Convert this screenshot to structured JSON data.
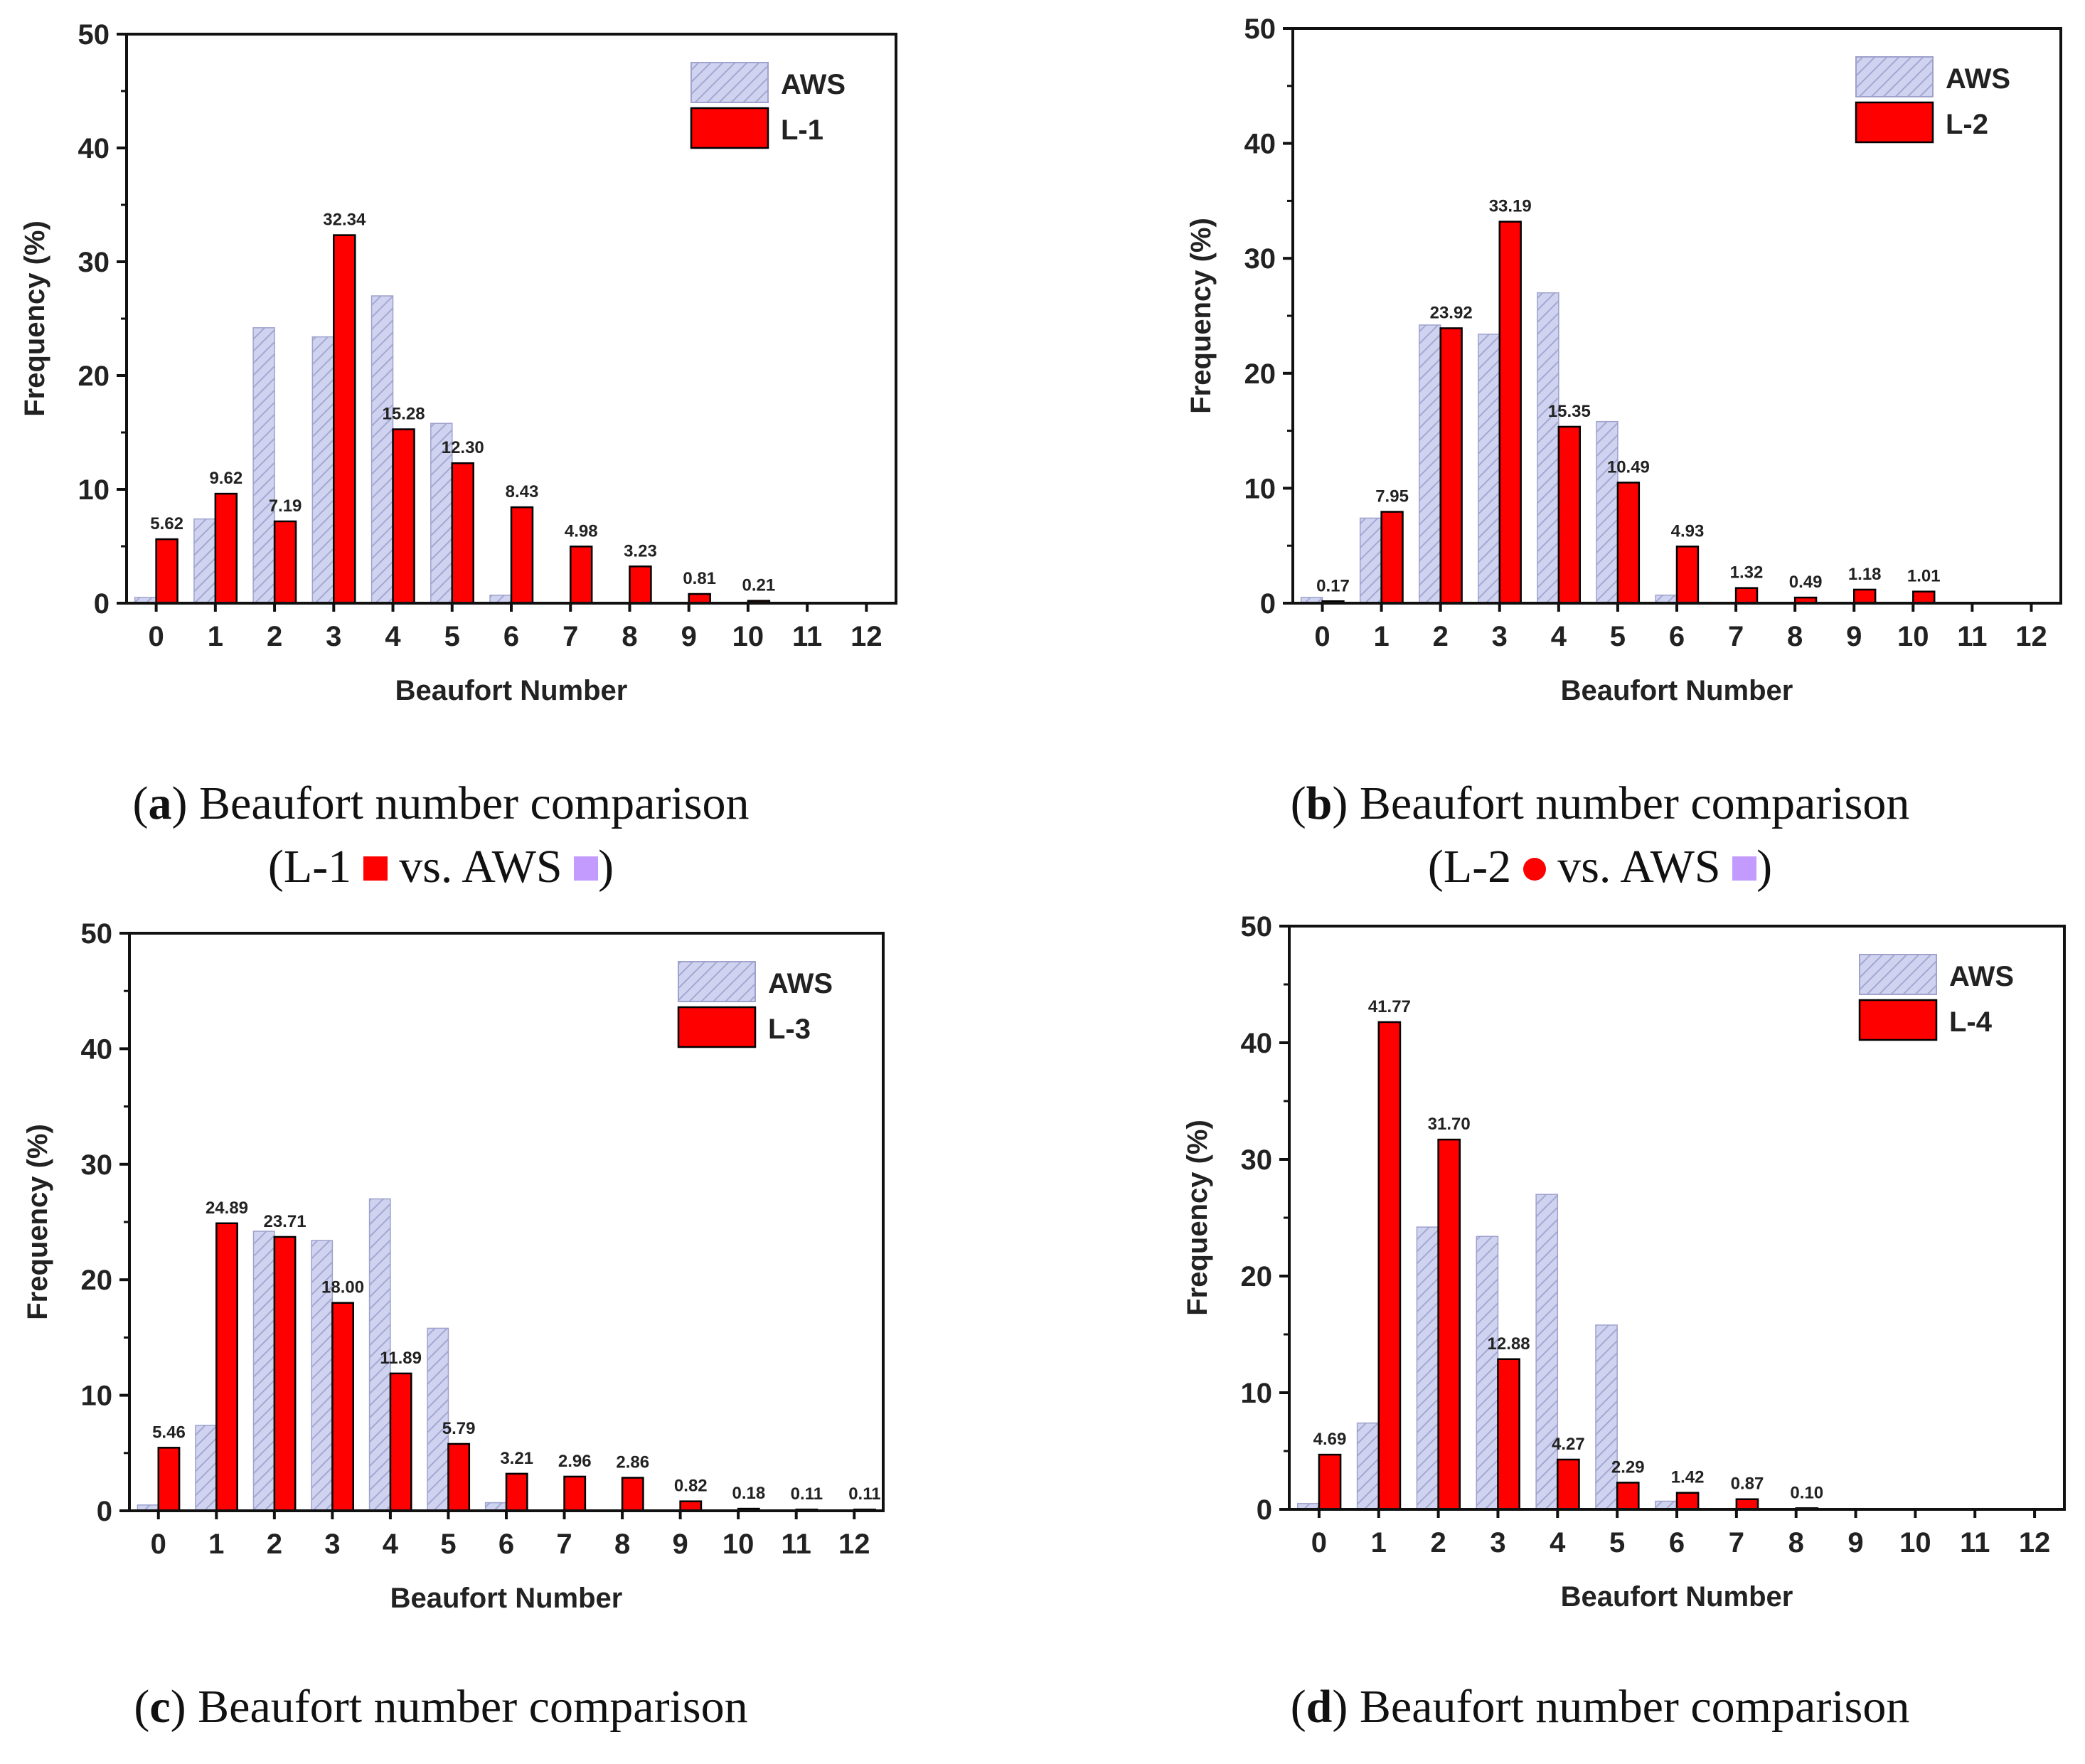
{
  "colors": {
    "aws_fill": "#d0d3f0",
    "aws_hatch": "#a4a8d2",
    "l_fill": "#ff0000",
    "axis": "#111111",
    "caption_marker": "#c39bff"
  },
  "chart_data": [
    {
      "id": "a",
      "type": "bar",
      "categories": [
        "0",
        "1",
        "2",
        "3",
        "4",
        "5",
        "6",
        "7",
        "8",
        "9",
        "10",
        "11",
        "12"
      ],
      "series": [
        {
          "name": "AWS",
          "values": [
            0.5,
            7.4,
            24.2,
            23.4,
            27.0,
            15.8,
            0.7,
            0,
            0,
            0,
            0,
            0,
            0
          ]
        },
        {
          "name": "L-1",
          "values": [
            5.62,
            9.62,
            7.19,
            32.34,
            15.28,
            12.3,
            8.43,
            4.98,
            3.23,
            0.81,
            0.21,
            null,
            null
          ]
        }
      ],
      "data_labels": [
        "5.62",
        "9.62",
        "7.19",
        "32.34",
        "15.28",
        "12.30",
        "8.43",
        "4.98",
        "3.23",
        "0.81",
        "0.21",
        "",
        ""
      ],
      "xlabel": "Beaufort Number",
      "ylabel": "Frequency (%)",
      "ylim": [
        0,
        50
      ],
      "yticks": [
        "0",
        "10",
        "20",
        "30",
        "40",
        "50"
      ],
      "legend": "top-right"
    },
    {
      "id": "b",
      "type": "bar",
      "categories": [
        "0",
        "1",
        "2",
        "3",
        "4",
        "5",
        "6",
        "7",
        "8",
        "9",
        "10",
        "11",
        "12"
      ],
      "series": [
        {
          "name": "AWS",
          "values": [
            0.5,
            7.4,
            24.2,
            23.4,
            27.0,
            15.8,
            0.7,
            0,
            0,
            0,
            0,
            0,
            0
          ]
        },
        {
          "name": "L-2",
          "values": [
            0.17,
            7.95,
            23.92,
            33.19,
            15.35,
            10.49,
            4.93,
            1.32,
            0.49,
            1.18,
            1.01,
            null,
            null
          ]
        }
      ],
      "data_labels": [
        "0.17",
        "7.95",
        "23.92",
        "33.19",
        "15.35",
        "10.49",
        "4.93",
        "1.32",
        "0.49",
        "1.18",
        "1.01",
        "",
        ""
      ],
      "xlabel": "Beaufort Number",
      "ylabel": "Frequency (%)",
      "ylim": [
        0,
        50
      ],
      "yticks": [
        "0",
        "10",
        "20",
        "30",
        "40",
        "50"
      ],
      "legend": "top-right"
    },
    {
      "id": "c",
      "type": "bar",
      "categories": [
        "0",
        "1",
        "2",
        "3",
        "4",
        "5",
        "6",
        "7",
        "8",
        "9",
        "10",
        "11",
        "12"
      ],
      "series": [
        {
          "name": "AWS",
          "values": [
            0.5,
            7.4,
            24.2,
            23.4,
            27.0,
            15.8,
            0.7,
            0,
            0,
            0,
            0,
            0,
            0
          ]
        },
        {
          "name": "L-3",
          "values": [
            5.46,
            24.89,
            23.71,
            18.0,
            11.89,
            5.79,
            3.21,
            2.96,
            2.86,
            0.82,
            0.18,
            0.11,
            0.11
          ]
        }
      ],
      "data_labels": [
        "5.46",
        "24.89",
        "23.71",
        "18.00",
        "11.89",
        "5.79",
        "3.21",
        "2.96",
        "2.86",
        "0.82",
        "0.18",
        "0.11",
        "0.11"
      ],
      "xlabel": "Beaufort Number",
      "ylabel": "Frequency (%)",
      "ylim": [
        0,
        50
      ],
      "yticks": [
        "0",
        "10",
        "20",
        "30",
        "40",
        "50"
      ],
      "legend": "top-right"
    },
    {
      "id": "d",
      "type": "bar",
      "categories": [
        "0",
        "1",
        "2",
        "3",
        "4",
        "5",
        "6",
        "7",
        "8",
        "9",
        "10",
        "11",
        "12"
      ],
      "series": [
        {
          "name": "AWS",
          "values": [
            0.5,
            7.4,
            24.2,
            23.4,
            27.0,
            15.8,
            0.7,
            0,
            0,
            0,
            0,
            0,
            0
          ]
        },
        {
          "name": "L-4",
          "values": [
            4.69,
            41.77,
            31.7,
            12.88,
            4.27,
            2.29,
            1.42,
            0.87,
            0.1,
            null,
            null,
            null,
            null
          ]
        }
      ],
      "data_labels": [
        "4.69",
        "41.77",
        "31.70",
        "12.88",
        "4.27",
        "2.29",
        "1.42",
        "0.87",
        "0.10",
        "",
        "",
        "",
        ""
      ],
      "xlabel": "Beaufort Number",
      "ylabel": "Frequency (%)",
      "ylim": [
        0,
        50
      ],
      "yticks": [
        "0",
        "10",
        "20",
        "30",
        "40",
        "50"
      ],
      "legend": "top-right"
    }
  ],
  "captions": {
    "a": {
      "letter": "a",
      "line1": "Beaufort number comparison",
      "line2_prefix": "(L-1",
      "line2_mid": "vs. AWS",
      "line2_suffix": ")"
    },
    "b": {
      "letter": "b",
      "line1": "Beaufort number comparison",
      "line2_prefix": "(L-2",
      "line2_mid": "vs. AWS",
      "line2_suffix": ")"
    },
    "c": {
      "letter": "c",
      "line1": "Beaufort number comparison"
    },
    "d": {
      "letter": "d",
      "line1": "Beaufort number comparison"
    }
  }
}
